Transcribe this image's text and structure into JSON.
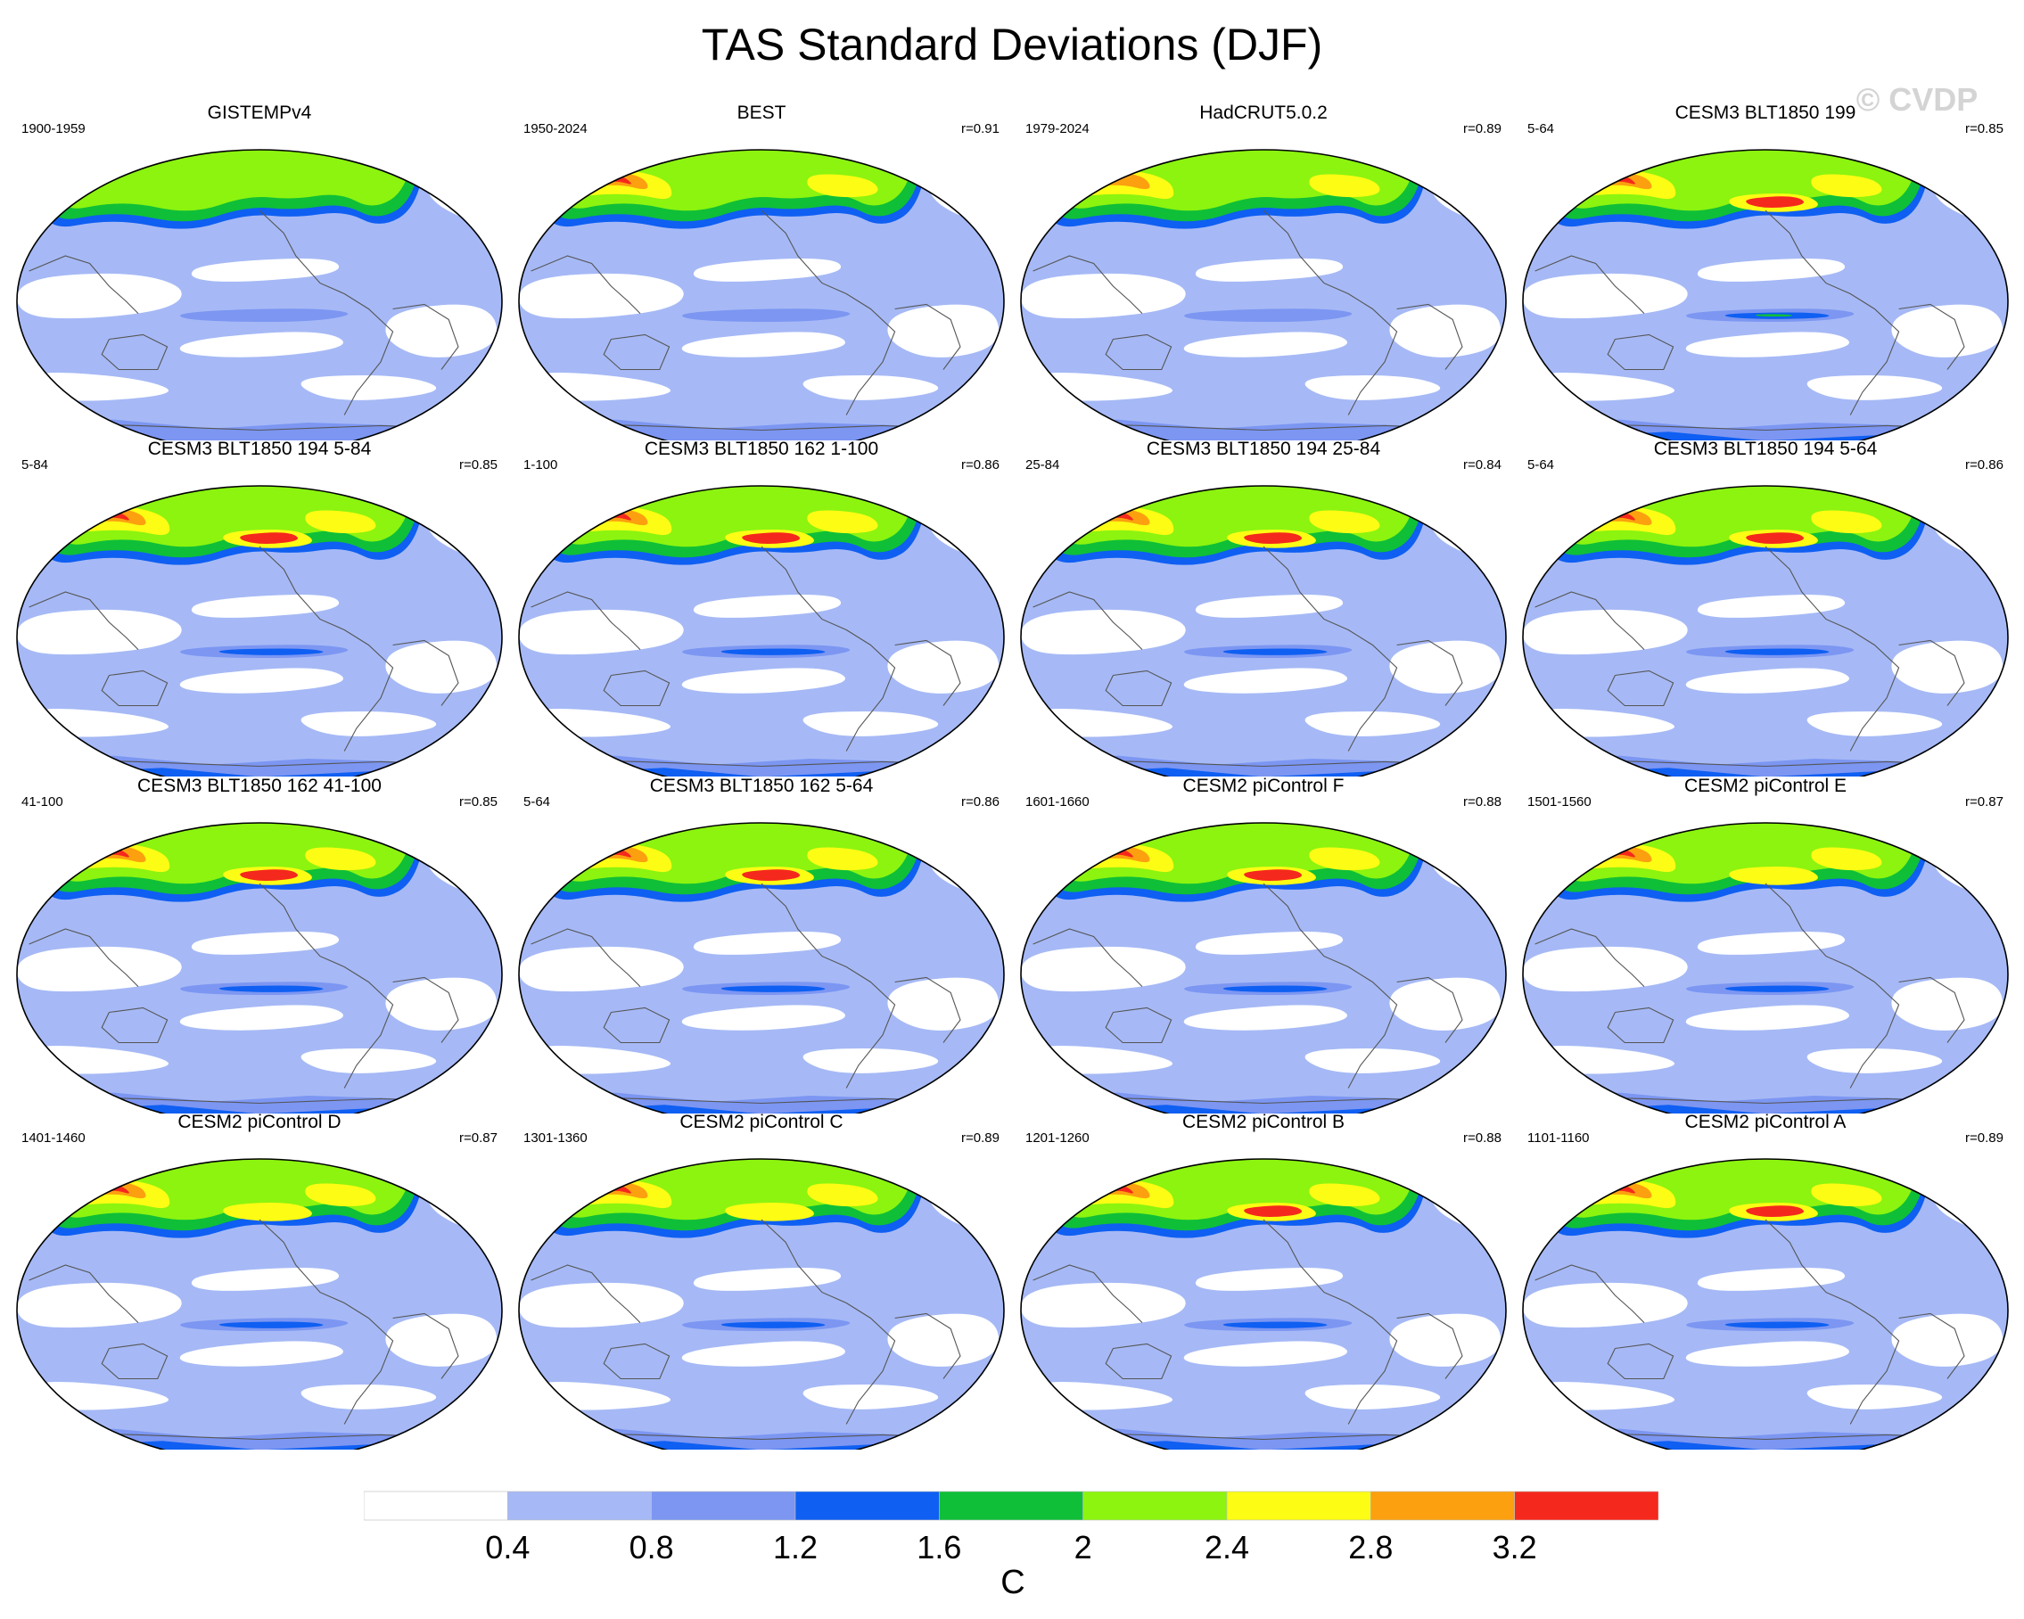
{
  "title": "TAS Standard Deviations (DJF)",
  "watermark": "© CVDP",
  "colorbar": {
    "units": "C",
    "labels": [
      "0.4",
      "0.8",
      "1.2",
      "1.6",
      "2",
      "2.4",
      "2.8",
      "3.2"
    ],
    "colors": [
      "#ffffff",
      "#a6b9f6",
      "#7c96f2",
      "#0f5ff2",
      "#0fbf38",
      "#8cf40f",
      "#fcfc14",
      "#fca00f",
      "#f5281d"
    ]
  },
  "panels": [
    {
      "name": "GISTEMPv4",
      "years": "1900-1959",
      "r": "",
      "peak": 0.5
    },
    {
      "name": "BEST",
      "years": "1950-2024",
      "r": "r=0.91",
      "peak": 0.75
    },
    {
      "name": "HadCRUT5.0.2",
      "years": "1979-2024",
      "r": "r=0.89",
      "peak": 0.6
    },
    {
      "name": "CESM3 BLT1850 199",
      "years": "5-64",
      "r": "r=0.85",
      "peak": 0.95
    },
    {
      "name": "CESM3 BLT1850 194 5-84",
      "years": "5-84",
      "r": "r=0.85",
      "peak": 1.0
    },
    {
      "name": "CESM3 BLT1850 162 1-100",
      "years": "1-100",
      "r": "r=0.86",
      "peak": 1.0
    },
    {
      "name": "CESM3 BLT1850 194 25-84",
      "years": "25-84",
      "r": "r=0.84",
      "peak": 1.0
    },
    {
      "name": "CESM3 BLT1850 194 5-64",
      "years": "5-64",
      "r": "r=0.86",
      "peak": 1.0
    },
    {
      "name": "CESM3 BLT1850 162 41-100",
      "years": "41-100",
      "r": "r=0.85",
      "peak": 1.0
    },
    {
      "name": "CESM3 BLT1850 162 5-64",
      "years": "5-64",
      "r": "r=0.86",
      "peak": 0.95
    },
    {
      "name": "CESM2 piControl F",
      "years": "1601-1660",
      "r": "r=0.88",
      "peak": 0.9
    },
    {
      "name": "CESM2 piControl E",
      "years": "1501-1560",
      "r": "r=0.87",
      "peak": 0.85
    },
    {
      "name": "CESM2 piControl D",
      "years": "1401-1460",
      "r": "r=0.87",
      "peak": 0.85
    },
    {
      "name": "CESM2 piControl C",
      "years": "1301-1360",
      "r": "r=0.89",
      "peak": 0.85
    },
    {
      "name": "CESM2 piControl B",
      "years": "1201-1260",
      "r": "r=0.88",
      "peak": 0.9
    },
    {
      "name": "CESM2 piControl A",
      "years": "1101-1160",
      "r": "r=0.89",
      "peak": 0.9
    }
  ]
}
